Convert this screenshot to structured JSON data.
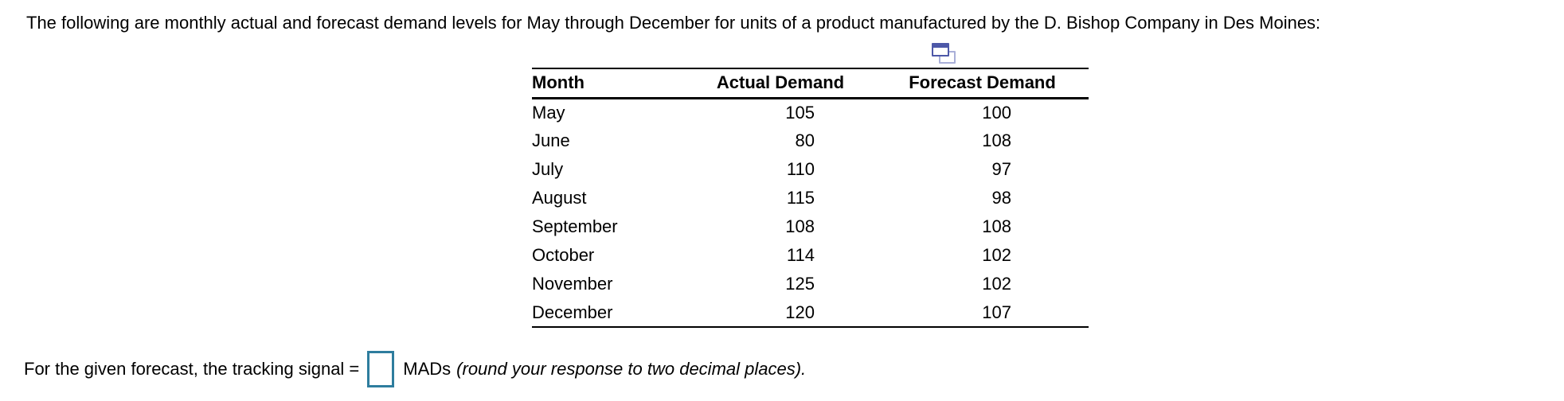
{
  "intro_text": "The following are monthly actual and forecast demand levels for May through December for units of a product manufactured by the D. Bishop Company in Des Moines:",
  "icon": {
    "name": "popup-window-icon",
    "front_color": "#4d58a8",
    "back_color": "#a9afd8"
  },
  "table": {
    "columns": [
      "Month",
      "Actual Demand",
      "Forecast Demand"
    ],
    "rows": [
      {
        "month": "May",
        "actual": "105",
        "forecast": "100"
      },
      {
        "month": "June",
        "actual": "80",
        "forecast": "108"
      },
      {
        "month": "July",
        "actual": "110",
        "forecast": "97"
      },
      {
        "month": "August",
        "actual": "115",
        "forecast": "98"
      },
      {
        "month": "September",
        "actual": "108",
        "forecast": "108"
      },
      {
        "month": "October",
        "actual": "114",
        "forecast": "102"
      },
      {
        "month": "November",
        "actual": "125",
        "forecast": "102"
      },
      {
        "month": "December",
        "actual": "120",
        "forecast": "107"
      }
    ]
  },
  "question": {
    "prefix": "For the given forecast, the tracking signal =",
    "input_value": "",
    "unit_label": "MADs",
    "note_italic": "(round your response to two decimal places)."
  },
  "colors": {
    "input_border": "#2e7d9e",
    "text": "#000000",
    "background": "#ffffff"
  }
}
